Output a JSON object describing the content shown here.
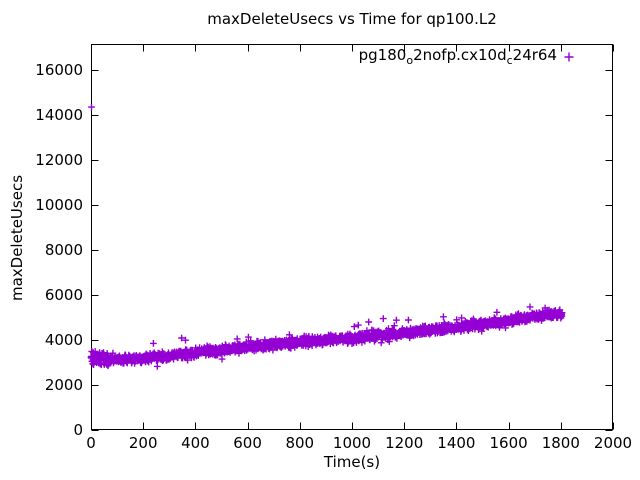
{
  "chart": {
    "title": "maxDeleteUsecs vs Time for qp100.L2",
    "xlabel": "Time(s)",
    "ylabel": "maxDeleteUsecs"
  },
  "legend": {
    "parts": [
      {
        "text": "pg180",
        "subscript": false
      },
      {
        "text": "o",
        "subscript": true
      },
      {
        "text": "2nofp.cx10d",
        "subscript": false
      },
      {
        "text": "c",
        "subscript": true
      },
      {
        "text": "24r64",
        "subscript": false
      }
    ],
    "marker_glyph": "+"
  },
  "colors": {
    "marker": "#9400D3",
    "axis": "#000000",
    "background": "#FFFFFF"
  },
  "chart_data": {
    "type": "scatter",
    "title": "maxDeleteUsecs vs Time for qp100.L2",
    "xlabel": "Time(s)",
    "ylabel": "maxDeleteUsecs",
    "xlim": [
      0,
      2000
    ],
    "ylim": [
      0,
      17155
    ],
    "xticks": [
      0,
      200,
      400,
      600,
      800,
      1000,
      1200,
      1400,
      1600,
      1800,
      2000
    ],
    "yticks": [
      0,
      2000,
      4000,
      6000,
      8000,
      10000,
      12000,
      14000,
      16000
    ],
    "grid": false,
    "legend_position": "top-right-inside",
    "marker": "plus",
    "marker_color": "#9400D3",
    "series": [
      {
        "name": "pg180_o2nofp.cx10d_c24r64",
        "n_points": 1806,
        "t_step": 1,
        "trend": [
          [
            0,
            3270
          ],
          [
            50,
            3200
          ],
          [
            100,
            3130
          ],
          [
            150,
            3140
          ],
          [
            200,
            3200
          ],
          [
            300,
            3320
          ],
          [
            400,
            3450
          ],
          [
            500,
            3580
          ],
          [
            600,
            3700
          ],
          [
            700,
            3810
          ],
          [
            800,
            3920
          ],
          [
            900,
            4010
          ],
          [
            1000,
            4090
          ],
          [
            1100,
            4210
          ],
          [
            1200,
            4320
          ],
          [
            1300,
            4440
          ],
          [
            1400,
            4570
          ],
          [
            1500,
            4700
          ],
          [
            1600,
            4860
          ],
          [
            1700,
            5050
          ],
          [
            1760,
            5130
          ],
          [
            1805,
            5130
          ]
        ],
        "noise_std": 95,
        "outliers": [
          [
            2,
            14350
          ],
          [
            40,
            2900
          ],
          [
            239,
            3850
          ],
          [
            347,
            4090
          ],
          [
            362,
            3990
          ],
          [
            502,
            3150
          ],
          [
            560,
            4050
          ],
          [
            603,
            4130
          ],
          [
            760,
            4230
          ],
          [
            1000,
            3840
          ],
          [
            1024,
            4660
          ],
          [
            1064,
            4800
          ],
          [
            1120,
            4950
          ],
          [
            1170,
            4880
          ],
          [
            1216,
            4890
          ],
          [
            1260,
            4240
          ],
          [
            1350,
            5030
          ],
          [
            1420,
            4980
          ],
          [
            1497,
            4390
          ],
          [
            1555,
            5230
          ],
          [
            1682,
            5470
          ],
          [
            1740,
            5420
          ]
        ]
      }
    ]
  }
}
